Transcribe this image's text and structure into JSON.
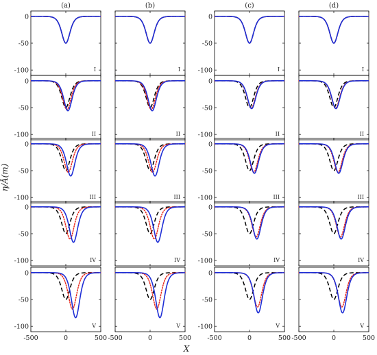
{
  "chart_data": {
    "type": "line",
    "column_labels": [
      "(a)",
      "(b)",
      "(c)",
      "(d)"
    ],
    "row_labels": [
      "I",
      "II",
      "III",
      "IV",
      "V"
    ],
    "xlabel": "X",
    "ylabel": "η/Â(m)",
    "xlim": [
      -500,
      500
    ],
    "ylim": [
      -110,
      10
    ],
    "xticks": [
      -500,
      0,
      500
    ],
    "xtick_labels": [
      "-500",
      "0",
      "500"
    ],
    "yticks": [
      0,
      -50,
      -100
    ],
    "ytick_labels": [
      "0",
      "-50",
      "-100"
    ],
    "series_styles": [
      {
        "key": "dashed",
        "color": "#000000",
        "dash": "6,3.5"
      },
      {
        "key": "dotted",
        "color": "#e8291c",
        "dash": "1.6,2"
      },
      {
        "key": "solid",
        "color": "#1f2fd6",
        "dash": ""
      }
    ],
    "panels": [
      [
        {
          "dashed": {
            "center": 0,
            "min": -50
          },
          "dotted": {
            "center": 0,
            "min": -50
          },
          "solid": {
            "center": 0,
            "min": -50
          }
        },
        {
          "dashed": {
            "center": 0,
            "min": -50
          },
          "dotted": {
            "center": 15,
            "min": -54
          },
          "solid": {
            "center": 30,
            "min": -56
          }
        },
        {
          "dashed": {
            "center": 0,
            "min": -50
          },
          "dotted": {
            "center": 35,
            "min": -53
          },
          "solid": {
            "center": 70,
            "min": -60
          }
        },
        {
          "dashed": {
            "center": 0,
            "min": -50
          },
          "dotted": {
            "center": 60,
            "min": -60
          },
          "solid": {
            "center": 110,
            "min": -66
          }
        },
        {
          "dashed": {
            "center": 0,
            "min": -50
          },
          "dotted": {
            "center": 95,
            "min": -68
          },
          "solid": {
            "center": 140,
            "min": -84
          }
        }
      ],
      [
        {
          "dashed": {
            "center": 0,
            "min": -50
          },
          "dotted": {
            "center": 0,
            "min": -50
          },
          "solid": {
            "center": 0,
            "min": -50
          }
        },
        {
          "dashed": {
            "center": 0,
            "min": -50
          },
          "dotted": {
            "center": 15,
            "min": -54
          },
          "solid": {
            "center": 30,
            "min": -56
          }
        },
        {
          "dashed": {
            "center": 0,
            "min": -50
          },
          "dotted": {
            "center": 35,
            "min": -53
          },
          "solid": {
            "center": 70,
            "min": -60
          }
        },
        {
          "dashed": {
            "center": 0,
            "min": -50
          },
          "dotted": {
            "center": 60,
            "min": -60
          },
          "solid": {
            "center": 110,
            "min": -66
          }
        },
        {
          "dashed": {
            "center": 0,
            "min": -50
          },
          "dotted": {
            "center": 95,
            "min": -68
          },
          "solid": {
            "center": 140,
            "min": -84
          }
        }
      ],
      [
        {
          "dashed": {
            "center": 0,
            "min": -50
          },
          "dotted": {
            "center": 0,
            "min": -50
          },
          "solid": {
            "center": 0,
            "min": -50
          }
        },
        {
          "dashed": {
            "center": 0,
            "min": -50
          },
          "dotted": {
            "center": 25,
            "min": -51
          },
          "solid": {
            "center": 30,
            "min": -52
          }
        },
        {
          "dashed": {
            "center": 0,
            "min": -50
          },
          "dotted": {
            "center": 60,
            "min": -53
          },
          "solid": {
            "center": 70,
            "min": -55
          }
        },
        {
          "dashed": {
            "center": 0,
            "min": -50
          },
          "dotted": {
            "center": 95,
            "min": -56
          },
          "solid": {
            "center": 105,
            "min": -60
          }
        },
        {
          "dashed": {
            "center": 0,
            "min": -50
          },
          "dotted": {
            "center": 115,
            "min": -64
          },
          "solid": {
            "center": 125,
            "min": -75
          }
        }
      ],
      [
        {
          "dashed": {
            "center": 0,
            "min": -50
          },
          "dotted": {
            "center": 0,
            "min": -50
          },
          "solid": {
            "center": 0,
            "min": -50
          }
        },
        {
          "dashed": {
            "center": 0,
            "min": -50
          },
          "dotted": {
            "center": 25,
            "min": -51
          },
          "solid": {
            "center": 30,
            "min": -52
          }
        },
        {
          "dashed": {
            "center": 0,
            "min": -50
          },
          "dotted": {
            "center": 60,
            "min": -53
          },
          "solid": {
            "center": 70,
            "min": -55
          }
        },
        {
          "dashed": {
            "center": 0,
            "min": -50
          },
          "dotted": {
            "center": 95,
            "min": -56
          },
          "solid": {
            "center": 105,
            "min": -60
          }
        },
        {
          "dashed": {
            "center": 0,
            "min": -50
          },
          "dotted": {
            "center": 115,
            "min": -64
          },
          "solid": {
            "center": 125,
            "min": -75
          }
        }
      ]
    ]
  }
}
